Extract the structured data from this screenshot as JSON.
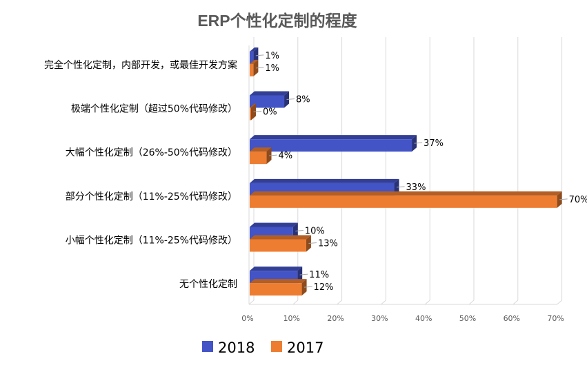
{
  "colors": {
    "s2018": "#4254C6",
    "s2017": "#ED7D31",
    "grid": "#D9D9D9",
    "text": "#000000",
    "title": "#595959",
    "axis": "#595959"
  },
  "chart_data": {
    "type": "bar",
    "orientation": "horizontal",
    "title": "ERP个性化定制的程度",
    "categories": [
      "完全个性化定制，内部开发，或最佳开发方案",
      "极端个性化定制（超过50%代码修改）",
      "大幅个性化定制（26%-50%代码修改）",
      "部分个性化定制（11%-25%代码修改）",
      "小幅个性化定制（11%-25%代码修改）",
      "无个性化定制"
    ],
    "series": [
      {
        "name": "2018",
        "values": [
          1,
          8,
          37,
          33,
          10,
          11
        ],
        "labels": [
          "1%",
          "8%",
          "37%",
          "33%",
          "10%",
          "11%"
        ]
      },
      {
        "name": "2017",
        "values": [
          1,
          0,
          4,
          70,
          13,
          12
        ],
        "labels": [
          "1%",
          "0%",
          "4%",
          "70%",
          "13%",
          "12%"
        ]
      }
    ],
    "xlim": [
      0,
      70
    ],
    "x_ticks": [
      "0%",
      "10%",
      "20%",
      "30%",
      "40%",
      "50%",
      "60%",
      "70%"
    ],
    "grid": true,
    "legend": "bottom",
    "style": "3d"
  }
}
